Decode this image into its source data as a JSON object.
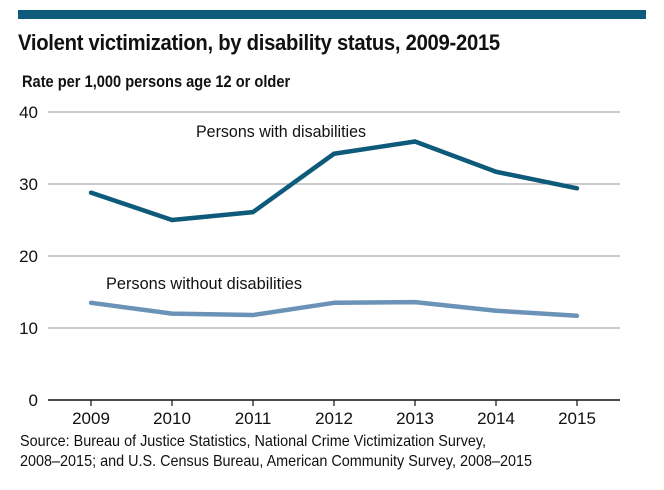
{
  "header": {
    "title": "Violent victimization, by disability status, 2009-2015",
    "ylabel": "Rate per 1,000 persons age 12 or older"
  },
  "source": {
    "line1": "Source: Bureau of Justice Statistics, National Crime Victimization Survey,",
    "line2": "2008–2015; and U.S. Census Bureau, American Community Survey, 2008–2015"
  },
  "colors": {
    "accent_bar": "#0e5a7a",
    "series_with": "#0e5a7a",
    "series_without": "#6b93b8",
    "grid": "#9a9a9a"
  },
  "chart_data": {
    "type": "line",
    "title": "Violent victimization, by disability status, 2009-2015",
    "xlabel": "",
    "ylabel": "Rate per 1,000 persons age 12 or older",
    "x": [
      "2009",
      "2010",
      "2011",
      "2012",
      "2013",
      "2014",
      "2015"
    ],
    "yticks": [
      0,
      10,
      20,
      30,
      40
    ],
    "ylim": [
      0,
      40
    ],
    "grid": true,
    "series": [
      {
        "name": "Persons with disabilities",
        "values": [
          28.8,
          25.0,
          26.1,
          34.2,
          35.9,
          31.7,
          29.4
        ]
      },
      {
        "name": "Persons without disabilities",
        "values": [
          13.5,
          12.0,
          11.8,
          13.5,
          13.6,
          12.4,
          11.7
        ]
      }
    ]
  }
}
